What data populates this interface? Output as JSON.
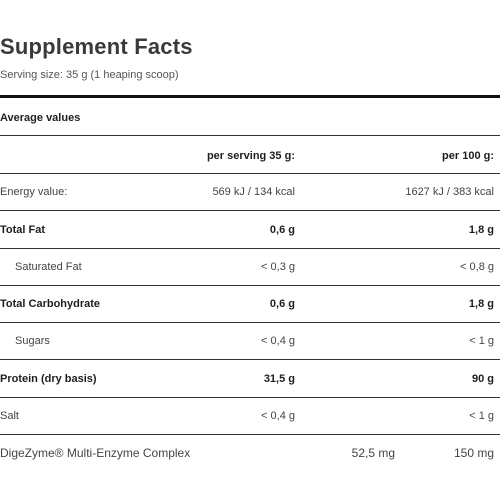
{
  "title": "Supplement Facts",
  "serving_size": "Serving size: 35 g (1 heaping scoop)",
  "section_header": "Average values",
  "columns": {
    "per_serving": "per serving 35 g:",
    "per_100g": "per 100 g:"
  },
  "rows": [
    {
      "label": "Energy value:",
      "per_serving": "569 kJ / 134 kcal",
      "per_100g": "1627 kJ / 383 kcal"
    },
    {
      "label": "Total Fat",
      "per_serving": "0,6 g",
      "per_100g": "1,8 g"
    },
    {
      "label": "Saturated Fat",
      "per_serving": "< 0,3 g",
      "per_100g": "< 0,8 g"
    },
    {
      "label": "Total Carbohydrate",
      "per_serving": "0,6 g",
      "per_100g": "1,8 g"
    },
    {
      "label": "Sugars",
      "per_serving": "< 0,4 g",
      "per_100g": "< 1 g"
    },
    {
      "label": "Protein (dry basis)",
      "per_serving": "31,5 g",
      "per_100g": "90 g"
    },
    {
      "label": "Salt",
      "per_serving": "< 0,4 g",
      "per_100g": "< 1 g"
    }
  ],
  "footer_row": {
    "label": "DigeZyme® Multi-Enzyme Complex",
    "per_serving": "52,5 mg",
    "per_100g": "150 mg"
  }
}
